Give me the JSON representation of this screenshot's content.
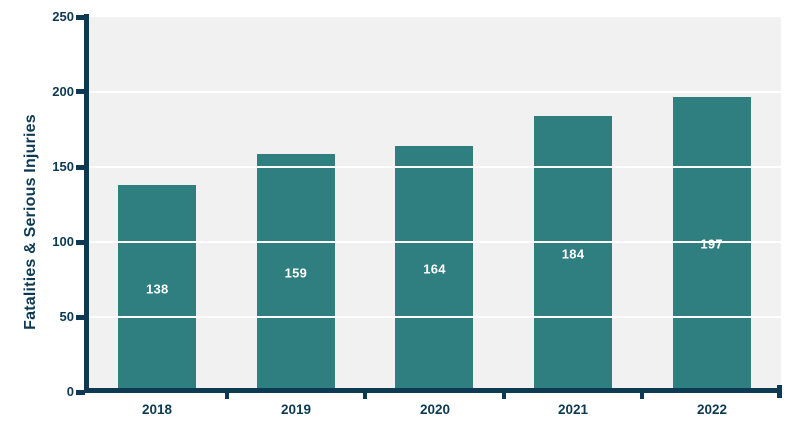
{
  "chart_data": {
    "type": "bar",
    "categories": [
      "2018",
      "2019",
      "2020",
      "2021",
      "2022"
    ],
    "values": [
      138,
      159,
      164,
      184,
      197
    ],
    "title": "",
    "xlabel": "",
    "ylabel": "Fatalities & Serious Injuries",
    "ylim": [
      0,
      250
    ],
    "y_ticks": [
      0,
      50,
      100,
      150,
      200,
      250
    ],
    "grid": true,
    "legend": "none",
    "colors": {
      "bar": "#2f7f81",
      "axis": "#0d3a52",
      "tick_label": "#0d3a52",
      "plot_background": "#f1f1f1",
      "gridline": "#ffffff",
      "value_label": "#ffffff",
      "page_background": "#ffffff"
    }
  }
}
